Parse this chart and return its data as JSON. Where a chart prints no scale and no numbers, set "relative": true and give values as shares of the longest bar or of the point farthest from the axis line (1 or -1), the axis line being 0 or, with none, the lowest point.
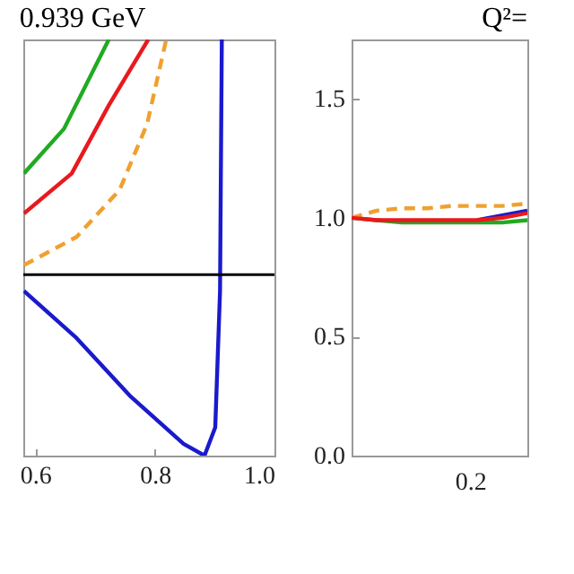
{
  "chart_data": [
    {
      "type": "line",
      "title": "0.939 GeV",
      "relative": true,
      "tick_labels": "x",
      "xlim": [
        0.58,
        1.0
      ],
      "xticks": [
        0.6,
        0.8,
        {
          "value": 1.0,
          "label": "1.0"
        }
      ],
      "ref_lines": [
        {
          "axis": "y",
          "value": 0,
          "color": "#000000"
        }
      ],
      "series": [
        {
          "color": "#22aa22",
          "x": [
            0.581,
            0.648,
            0.723
          ],
          "values": [
            0.43,
            0.62,
            1.0
          ]
        },
        {
          "color": "#e8191e",
          "x": [
            0.581,
            0.661,
            0.723,
            0.789
          ],
          "values": [
            0.26,
            0.43,
            0.72,
            1.0
          ]
        },
        {
          "color": "#f0a030",
          "line_style": "dashed",
          "x": [
            0.581,
            0.669,
            0.741,
            0.787,
            0.819
          ],
          "values": [
            0.04,
            0.16,
            0.36,
            0.64,
            1.0
          ]
        },
        {
          "color": "#1a1acc",
          "x": [
            0.581,
            0.669,
            0.76,
            0.848,
            0.883,
            0.901,
            0.909,
            0.912
          ],
          "values": [
            -0.07,
            -0.27,
            -0.52,
            -0.72,
            -0.77,
            -0.65,
            -0.07,
            1.0
          ]
        }
      ]
    },
    {
      "type": "line",
      "title": "Q²=",
      "annotations": [
        "0.2"
      ],
      "tick_labels": "y",
      "categories": [
        null,
        null,
        null,
        null,
        null,
        null,
        null,
        null
      ],
      "ylim": [
        0,
        1.75
      ],
      "yticks": [
        {
          "value": 0,
          "label": "0.0"
        },
        0.5,
        {
          "value": 1,
          "label": "1.0"
        },
        1.5
      ],
      "series": [
        {
          "color": "#1a1acc",
          "values": [
            null,
            null,
            null,
            null,
            null,
            0.99,
            1.01,
            1.03
          ]
        },
        {
          "color": "#22aa22",
          "values": [
            1.0,
            0.99,
            0.98,
            0.98,
            0.98,
            0.98,
            0.98,
            0.99
          ]
        },
        {
          "color": "#f0a030",
          "line_style": "dashed",
          "values": [
            1.0,
            1.03,
            1.04,
            1.04,
            1.05,
            1.05,
            1.05,
            1.06
          ]
        },
        {
          "color": "#e8191e",
          "values": [
            1.0,
            0.99,
            0.99,
            0.99,
            0.99,
            0.99,
            1.0,
            1.02
          ]
        }
      ]
    }
  ]
}
